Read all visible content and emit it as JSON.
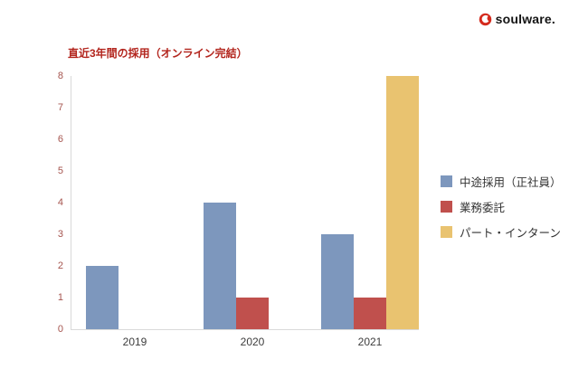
{
  "brand": {
    "name": "soulware.",
    "color": "#d42a1d"
  },
  "chart_data": {
    "type": "bar",
    "title": "直近3年間の採用（オンライン完結）",
    "title_color": "#b3261e",
    "categories": [
      "2019",
      "2020",
      "2021"
    ],
    "series": [
      {
        "name": "中途採用（正社員）",
        "color": "#7d97bd",
        "values": [
          2,
          4,
          3
        ]
      },
      {
        "name": "業務委託",
        "color": "#c0504d",
        "values": [
          0,
          1,
          1
        ]
      },
      {
        "name": "パート・インターン",
        "color": "#e9c370",
        "values": [
          0,
          0,
          8
        ]
      }
    ],
    "ylim": [
      0,
      8
    ],
    "yticks": [
      0,
      1,
      2,
      3,
      4,
      5,
      6,
      7,
      8
    ],
    "ytick_color": "#a5544e",
    "xtick_color": "#3d3d3d",
    "grid": false,
    "legend_position": "right"
  }
}
